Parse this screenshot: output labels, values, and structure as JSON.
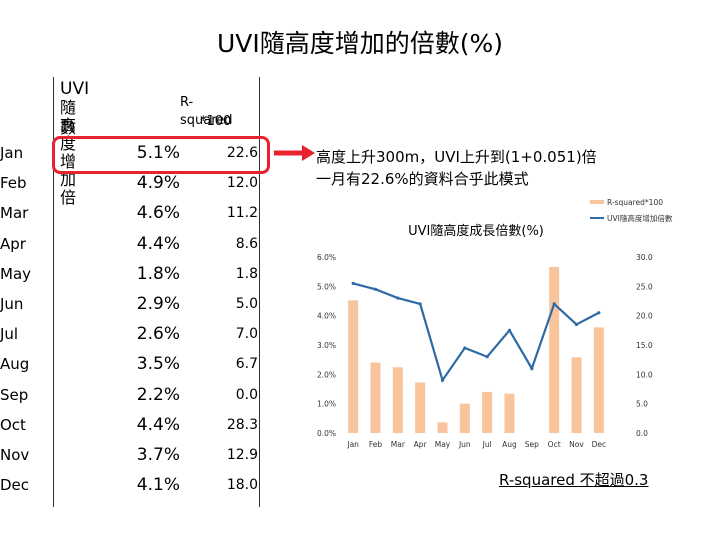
{
  "slide_title": "UVI隨高度增加的倍數(%)",
  "table": {
    "header_growth": [
      "UVI",
      "隨高度增加倍",
      "數"
    ],
    "header_r2": [
      "R-squared",
      "*100"
    ],
    "rows": [
      {
        "month": "Jan",
        "growth": "5.1%",
        "r2": "22.6"
      },
      {
        "month": "Feb",
        "growth": "4.9%",
        "r2": "12.0"
      },
      {
        "month": "Mar",
        "growth": "4.6%",
        "r2": "11.2"
      },
      {
        "month": "Apr",
        "growth": "4.4%",
        "r2": "8.6"
      },
      {
        "month": "May",
        "growth": "1.8%",
        "r2": "1.8"
      },
      {
        "month": "Jun",
        "growth": "2.9%",
        "r2": "5.0"
      },
      {
        "month": "Jul",
        "growth": "2.6%",
        "r2": "7.0"
      },
      {
        "month": "Aug",
        "growth": "3.5%",
        "r2": "6.7"
      },
      {
        "month": "Sep",
        "growth": "2.2%",
        "r2": "0.0"
      },
      {
        "month": "Oct",
        "growth": "4.4%",
        "r2": "28.3"
      },
      {
        "month": "Nov",
        "growth": "3.7%",
        "r2": "12.9"
      },
      {
        "month": "Dec",
        "growth": "4.1%",
        "r2": "18.0"
      }
    ]
  },
  "annotation": "高度上升300m，UVI上升到(1+0.051)倍\n一月有22.6%的資料合乎此模式",
  "conclusion": "R-squared 不超過0.3",
  "colors": {
    "highlight": "#e8232f",
    "bar": "#f8c49c",
    "line": "#2e6aa6"
  },
  "chart_data": {
    "type": "bar",
    "title": "UVI隨高度成長倍數(%)",
    "categories": [
      "Jan",
      "Feb",
      "Mar",
      "Apr",
      "May",
      "Jun",
      "Jul",
      "Aug",
      "Sep",
      "Oct",
      "Nov",
      "Dec"
    ],
    "series": [
      {
        "name": "R-squared*100",
        "type": "bar",
        "axis": "right",
        "values": [
          22.6,
          12.0,
          11.2,
          8.6,
          1.8,
          5.0,
          7.0,
          6.7,
          0.0,
          28.3,
          12.9,
          18.0
        ]
      },
      {
        "name": "UVI隨高度增加倍數",
        "type": "line",
        "axis": "left",
        "values": [
          5.1,
          4.9,
          4.6,
          4.4,
          1.8,
          2.9,
          2.6,
          3.5,
          2.2,
          4.4,
          3.7,
          4.1
        ]
      }
    ],
    "y_left": {
      "range": [
        0,
        6
      ],
      "ticks": [
        "0.0%",
        "1.0%",
        "2.0%",
        "3.0%",
        "4.0%",
        "5.0%",
        "6.0%"
      ]
    },
    "y_right": {
      "range": [
        0,
        30
      ],
      "ticks": [
        "0.0",
        "5.0",
        "10.0",
        "15.0",
        "20.0",
        "25.0",
        "30.0"
      ]
    },
    "legend_position": "top-right",
    "grid": false
  }
}
